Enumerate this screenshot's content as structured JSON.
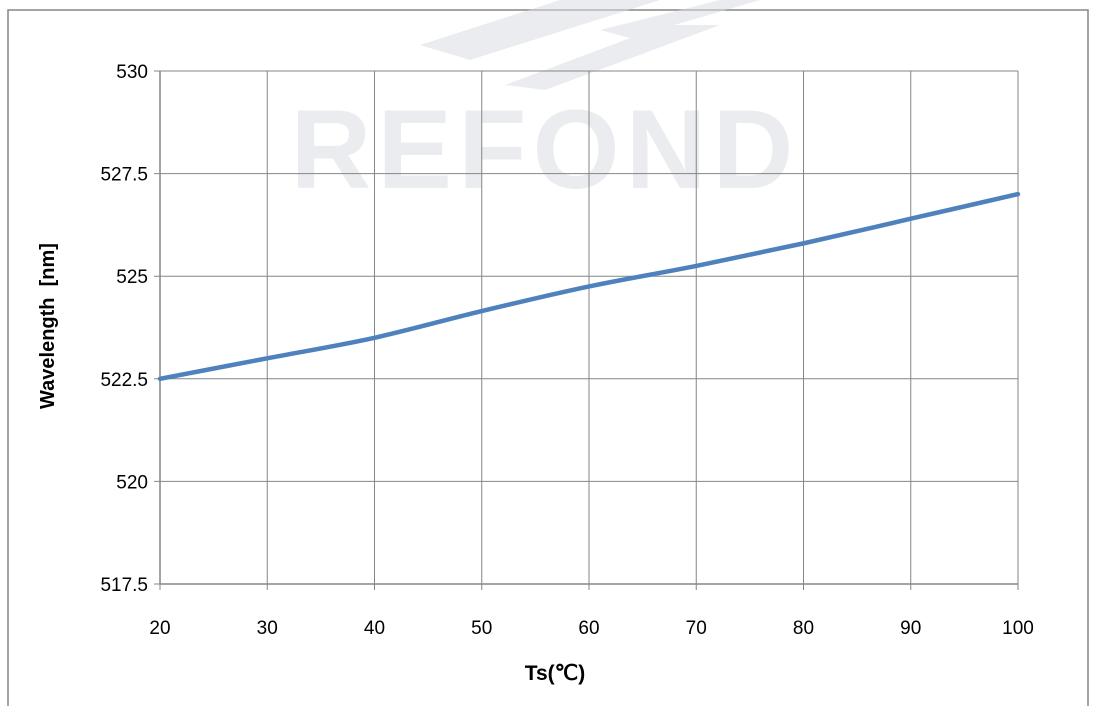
{
  "chart_data": {
    "type": "line",
    "title": "",
    "xlabel": "Ts(℃)",
    "ylabel": "Wavelength  [nm]",
    "x": [
      20,
      30,
      40,
      50,
      60,
      70,
      80,
      90,
      100
    ],
    "series": [
      {
        "values": [
          522.5,
          523.0,
          523.5,
          524.15,
          524.75,
          525.25,
          525.8,
          526.4,
          527.0
        ]
      }
    ],
    "xlim": [
      20,
      100
    ],
    "ylim": [
      517.5,
      530
    ],
    "xticks": [
      "20",
      "30",
      "40",
      "50",
      "60",
      "70",
      "80",
      "90",
      "100"
    ],
    "yticks": [
      "517.5",
      "520",
      "522.5",
      "525",
      "527.5",
      "530"
    ],
    "grid": true,
    "legend": "none",
    "colors": {
      "line": "#4f81bd",
      "grid": "#868686",
      "frame": "#868686",
      "watermark": "#d9dde2"
    }
  },
  "watermark": {
    "text": "REFOND"
  }
}
